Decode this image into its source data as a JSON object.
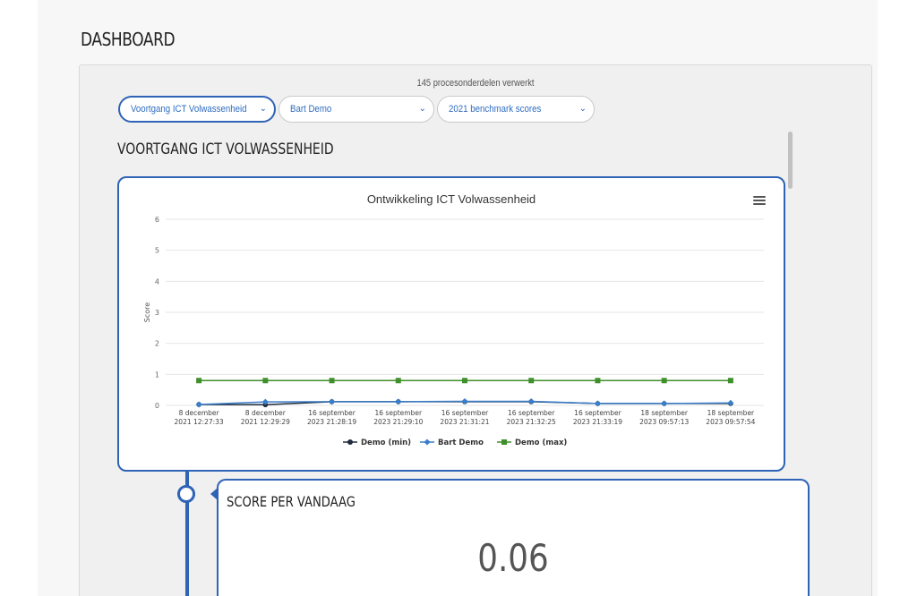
{
  "page": {
    "title": "DASHBOARD"
  },
  "panel": {
    "processed_text": "145 procesonderdelen verwerkt",
    "filters": [
      {
        "label": "Voortgang ICT Volwassenheid",
        "selected": true
      },
      {
        "label": "Bart Demo",
        "selected": false
      },
      {
        "label": "2021 benchmark scores",
        "selected": false
      }
    ],
    "section_title": "VOORTGANG ICT VOLWASSENHEID"
  },
  "chart": {
    "menu_icon": "hamburger-menu-icon"
  },
  "chart_data": {
    "type": "line",
    "title": "Ontwikkeling ICT Volwassenheid",
    "xlabel": "",
    "ylabel": "Score",
    "ylim": [
      0,
      6
    ],
    "yticks": [
      "0",
      "1",
      "2",
      "3",
      "4",
      "5",
      "6"
    ],
    "grid": true,
    "legend_position": "bottom",
    "categories": [
      [
        "8 december",
        "2021 12:27:33"
      ],
      [
        "8 december",
        "2021 12:29:29"
      ],
      [
        "16 september",
        "2023 21:28:19"
      ],
      [
        "16 september",
        "2023 21:29:10"
      ],
      [
        "16 september",
        "2023 21:31:21"
      ],
      [
        "16 september",
        "2023 21:32:25"
      ],
      [
        "16 september",
        "2023 21:33:19"
      ],
      [
        "18 september",
        "2023 09:57:13"
      ],
      [
        "18 september",
        "2023 09:57:54"
      ]
    ],
    "series": [
      {
        "name": "Demo (min)",
        "color": "#1f2b3d",
        "marker": "circle",
        "values": [
          0.03,
          0.02,
          0.12,
          0.12,
          0.12,
          0.12,
          0.06,
          0.06,
          0.06
        ]
      },
      {
        "name": "Bart Demo",
        "color": "#3b7ec9",
        "marker": "diamond",
        "values": [
          0.03,
          0.11,
          0.12,
          0.12,
          0.13,
          0.13,
          0.06,
          0.06,
          0.08
        ]
      },
      {
        "name": "Demo (max)",
        "color": "#3f8f2b",
        "marker": "square",
        "values": [
          0.8,
          0.8,
          0.8,
          0.8,
          0.8,
          0.8,
          0.8,
          0.8,
          0.8
        ]
      }
    ]
  },
  "score_card": {
    "title": "SCORE PER VANDAAG",
    "value": "0.06"
  }
}
